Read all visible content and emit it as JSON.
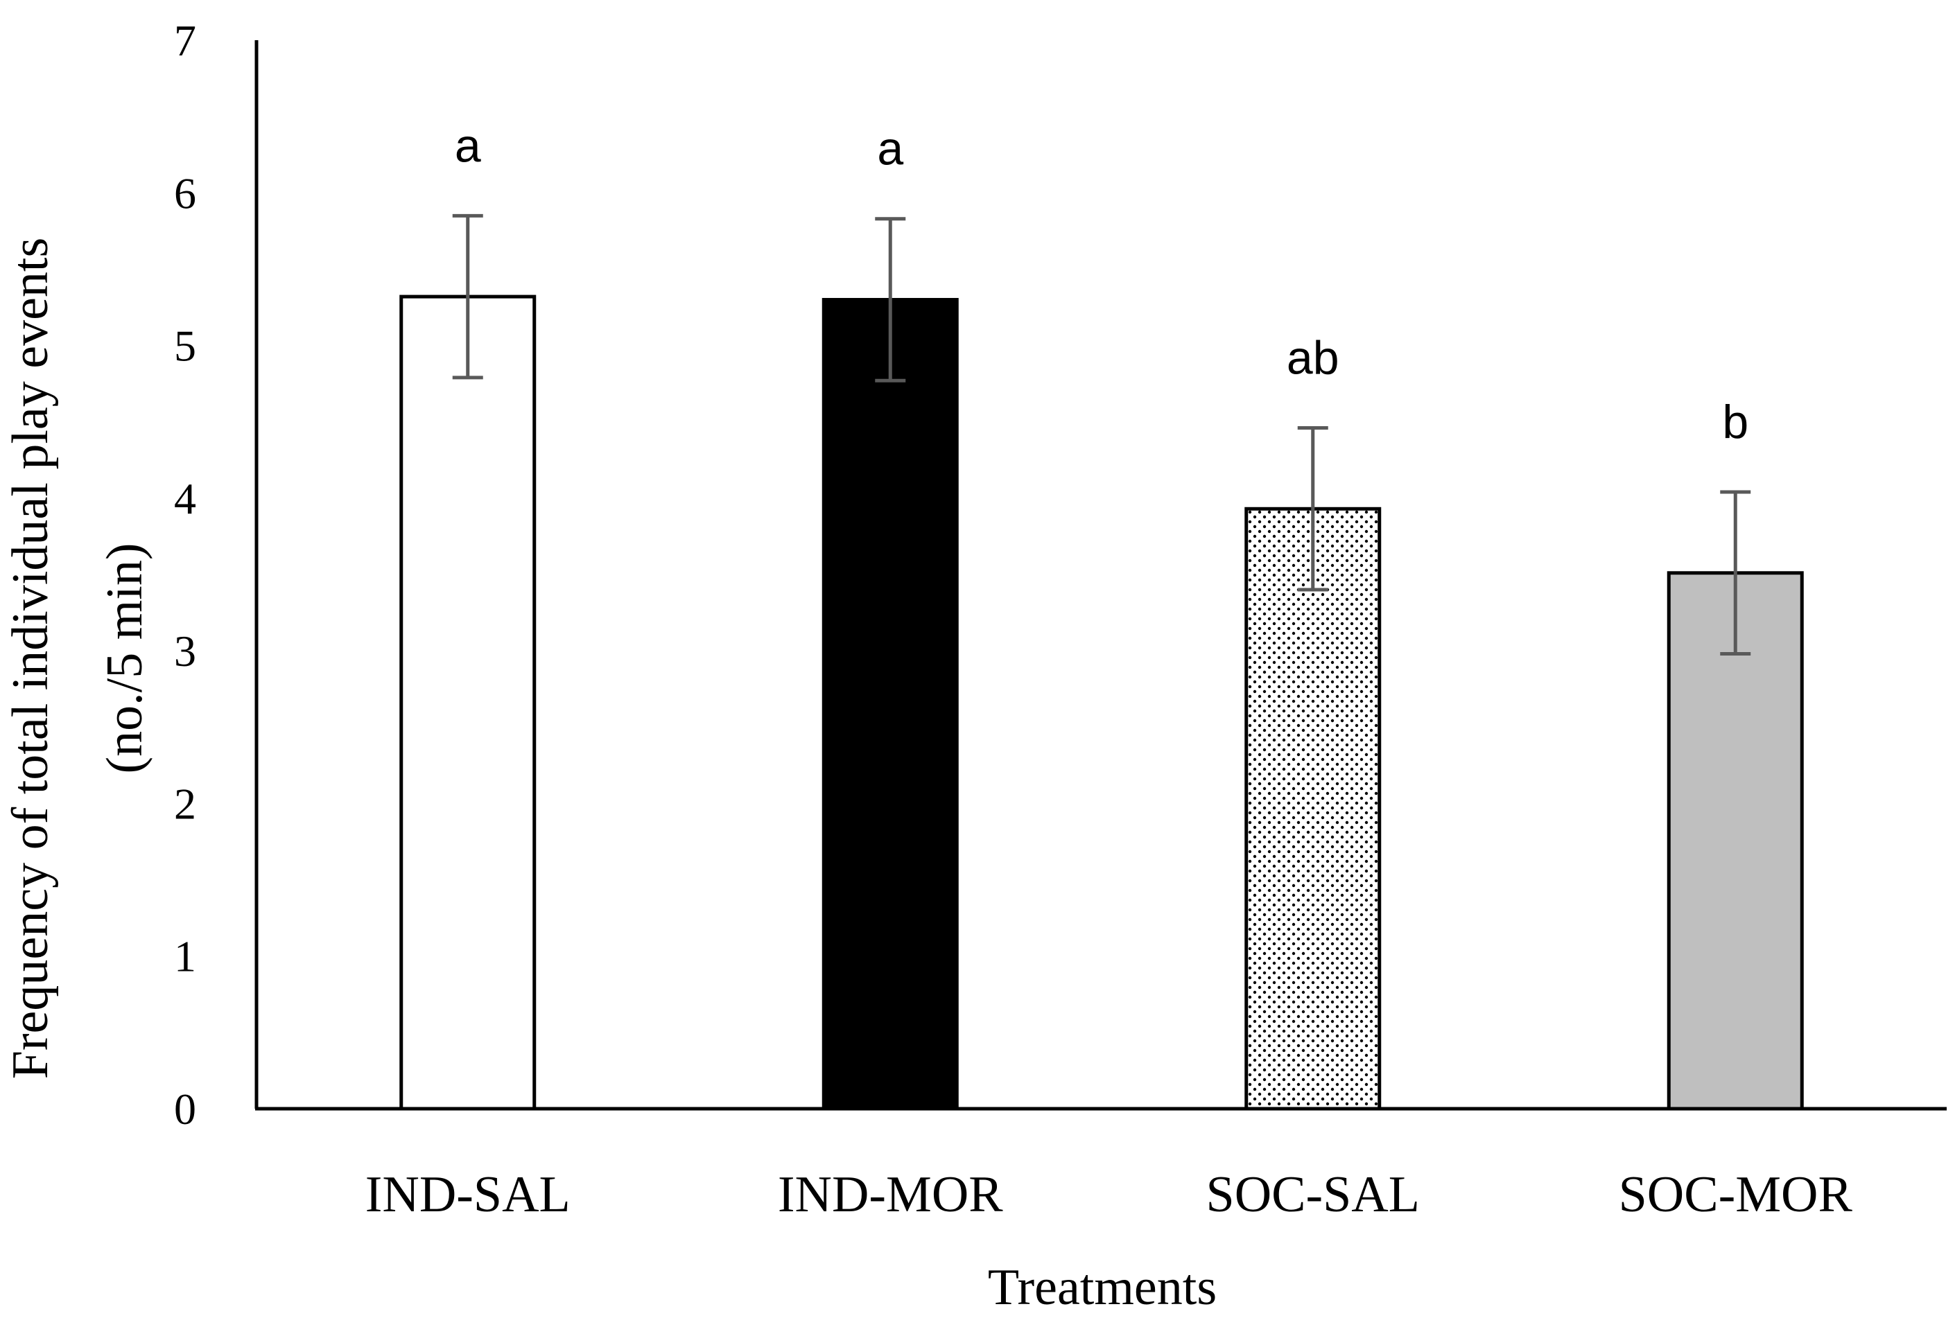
{
  "chart_data": {
    "type": "bar",
    "title": "",
    "xlabel": "Treatments",
    "ylabel_line1": "Frequency of total individual play events",
    "ylabel_line2": "(no./5 min)",
    "ylim": [
      0,
      7
    ],
    "yticks": [
      "0",
      "1",
      "2",
      "3",
      "4",
      "5",
      "6",
      "7"
    ],
    "grid": false,
    "categories": [
      "IND-SAL",
      "IND-MOR",
      "SOC-SAL",
      "SOC-MOR"
    ],
    "values": [
      5.32,
      5.3,
      3.93,
      3.51
    ],
    "error": [
      0.53,
      0.53,
      0.53,
      0.53
    ],
    "significance": [
      "a",
      "a",
      "ab",
      "b"
    ],
    "fills": [
      "white",
      "black",
      "dotted",
      "gray"
    ],
    "colors": {
      "axis": "#000000",
      "bar_outline": "#000000",
      "error_bar": "#595959",
      "white_fill": "#ffffff",
      "black_fill": "#000000",
      "gray_fill": "#bfbfbf",
      "dot_color": "#000000"
    }
  }
}
